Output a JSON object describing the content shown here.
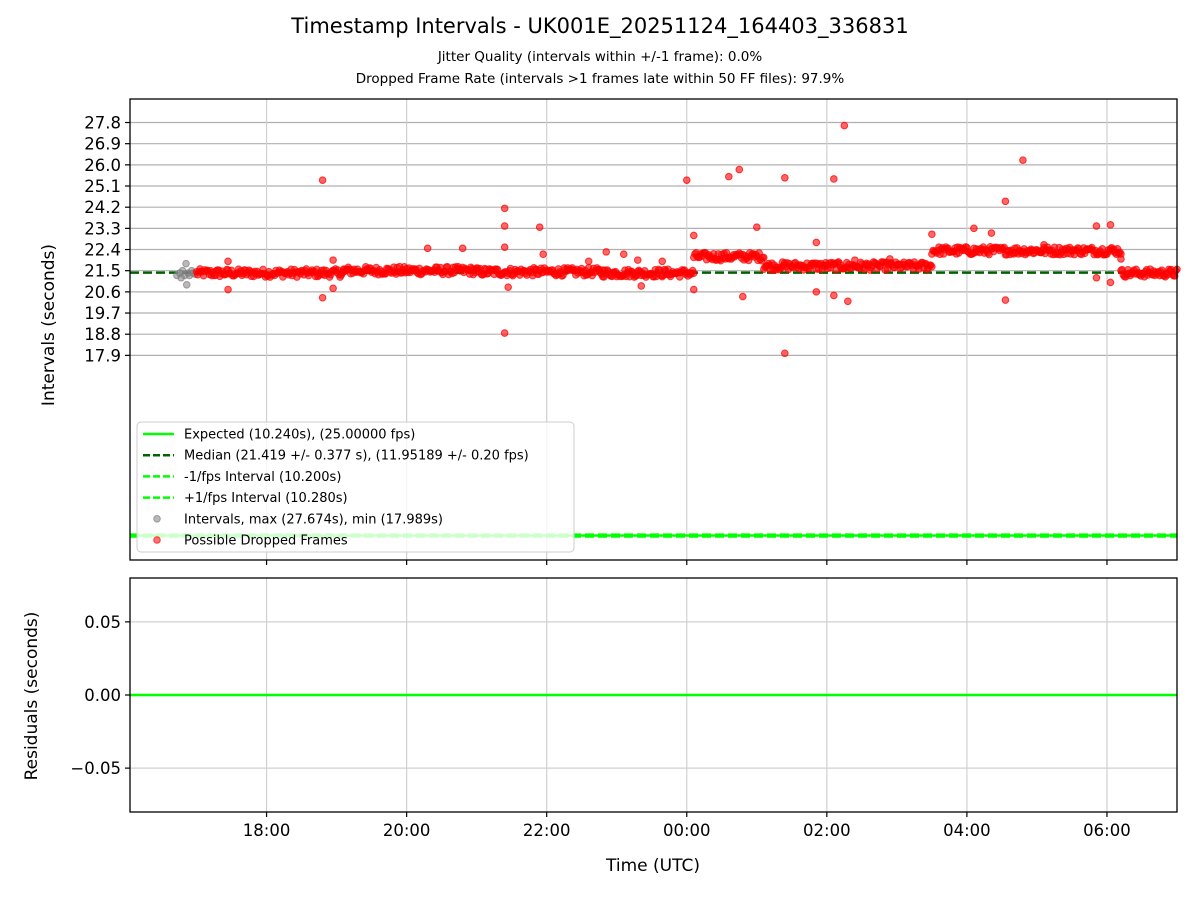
{
  "title": "Timestamp Intervals - UK001E_20251124_164403_336831",
  "subtitle_lines": [
    "Jitter Quality (intervals within +/-1 frame): 0.0%",
    "Dropped Frame Rate (intervals >1 frames late within 50 FF files): 97.9%"
  ],
  "colors": {
    "expected": "#00ff00",
    "median": "#006400",
    "fps_band": "#00ff00",
    "intervals": "#808080",
    "dropped": "#ff0000",
    "grid": "#b0b0b0"
  },
  "chart_data": [
    {
      "type": "scatter",
      "panel": "top",
      "ylabel": "Intervals (seconds)",
      "x_ticks": [
        "18:00",
        "20:00",
        "22:00",
        "00:00",
        "02:00",
        "04:00",
        "06:00"
      ],
      "x_tick_hours": [
        18,
        20,
        22,
        24,
        26,
        28,
        30
      ],
      "xlim_hours": [
        16.05,
        31.0
      ],
      "y_ticks": [
        "17.9",
        "18.8",
        "19.7",
        "20.6",
        "21.5",
        "22.4",
        "23.3",
        "24.2",
        "25.1",
        "26.0",
        "26.9",
        "27.8"
      ],
      "y_tick_values": [
        17.9,
        18.8,
        19.7,
        20.6,
        21.5,
        22.4,
        23.3,
        24.2,
        25.1,
        26.0,
        26.9,
        27.8
      ],
      "ylim": [
        9.2,
        28.8
      ],
      "legend_position": "lower-left",
      "lines": [
        {
          "name": "Expected (10.240s), (25.00000 fps)",
          "y": 10.24,
          "style": "solid",
          "color": "#00ff00"
        },
        {
          "name": "Median (21.419 +/- 0.377 s), (11.95189 +/- 0.20 fps)",
          "y": 21.419,
          "style": "dashed",
          "color": "#006400"
        },
        {
          "name": "-1/fps Interval (10.200s)",
          "y": 10.2,
          "style": "dashed",
          "color": "#00ff00"
        },
        {
          "name": "+1/fps Interval (10.280s)",
          "y": 10.28,
          "style": "dashed",
          "color": "#00ff00"
        }
      ],
      "scatter_series": [
        {
          "name": "Intervals, max (27.674s), min (17.989s)",
          "color": "#808080",
          "points": [
            [
              16.72,
              21.3
            ],
            [
              16.76,
              21.4
            ],
            [
              16.78,
              21.2
            ],
            [
              16.8,
              21.5
            ],
            [
              16.83,
              21.3
            ],
            [
              16.85,
              21.8
            ],
            [
              16.86,
              20.9
            ],
            [
              16.88,
              21.4
            ],
            [
              16.9,
              21.3
            ],
            [
              16.93,
              21.5
            ],
            [
              16.95,
              21.4
            ],
            [
              16.98,
              21.35
            ]
          ]
        },
        {
          "name": "Possible Dropped Frames",
          "color": "#ff0000",
          "segments": [
            {
              "x_start": 17.0,
              "x_end": 19.1,
              "y": 21.4
            },
            {
              "x_start": 19.1,
              "x_end": 21.0,
              "y": 21.5
            },
            {
              "x_start": 21.0,
              "x_end": 22.8,
              "y": 21.45
            },
            {
              "x_start": 22.8,
              "x_end": 24.1,
              "y": 21.4
            },
            {
              "x_start": 24.1,
              "x_end": 25.1,
              "y": 22.1
            },
            {
              "x_start": 25.1,
              "x_end": 27.5,
              "y": 21.7
            },
            {
              "x_start": 27.5,
              "x_end": 30.2,
              "y": 22.35
            },
            {
              "x_start": 30.2,
              "x_end": 31.0,
              "y": 21.4
            }
          ],
          "outliers": [
            [
              17.45,
              21.9
            ],
            [
              17.45,
              20.7
            ],
            [
              18.8,
              25.35
            ],
            [
              18.8,
              20.35
            ],
            [
              18.95,
              21.95
            ],
            [
              18.95,
              20.75
            ],
            [
              20.3,
              22.45
            ],
            [
              20.8,
              22.45
            ],
            [
              21.4,
              24.15
            ],
            [
              21.4,
              23.4
            ],
            [
              21.4,
              22.5
            ],
            [
              21.45,
              20.8
            ],
            [
              21.4,
              18.85
            ],
            [
              21.9,
              23.35
            ],
            [
              21.95,
              22.2
            ],
            [
              22.6,
              21.9
            ],
            [
              22.85,
              22.3
            ],
            [
              23.1,
              22.2
            ],
            [
              23.3,
              21.95
            ],
            [
              23.35,
              20.85
            ],
            [
              23.65,
              21.9
            ],
            [
              24.0,
              25.35
            ],
            [
              24.1,
              23.0
            ],
            [
              24.1,
              20.7
            ],
            [
              24.6,
              25.5
            ],
            [
              24.75,
              25.8
            ],
            [
              24.8,
              20.4
            ],
            [
              25.0,
              23.35
            ],
            [
              25.4,
              25.45
            ],
            [
              25.4,
              17.99
            ],
            [
              25.85,
              22.7
            ],
            [
              25.85,
              20.6
            ],
            [
              26.1,
              25.4
            ],
            [
              26.1,
              20.45
            ],
            [
              26.25,
              27.67
            ],
            [
              26.3,
              20.2
            ],
            [
              26.4,
              21.95
            ],
            [
              26.9,
              22.0
            ],
            [
              27.5,
              23.05
            ],
            [
              28.1,
              23.3
            ],
            [
              28.35,
              23.1
            ],
            [
              28.55,
              24.45
            ],
            [
              28.55,
              20.25
            ],
            [
              28.8,
              26.2
            ],
            [
              29.1,
              22.6
            ],
            [
              29.85,
              23.4
            ],
            [
              29.85,
              21.2
            ],
            [
              30.05,
              23.45
            ],
            [
              30.05,
              21.0
            ],
            [
              30.2,
              22.0
            ]
          ]
        }
      ]
    },
    {
      "type": "line",
      "panel": "bottom",
      "xlabel": "Time (UTC)",
      "ylabel": "Residuals (seconds)",
      "y_ticks": [
        "0.05",
        "0.00",
        "−0.05"
      ],
      "y_tick_values": [
        0.05,
        0.0,
        -0.05
      ],
      "ylim": [
        -0.08,
        0.08
      ],
      "series": [
        {
          "name": "residual",
          "y": 0.0,
          "color": "#00ff00"
        }
      ]
    }
  ]
}
